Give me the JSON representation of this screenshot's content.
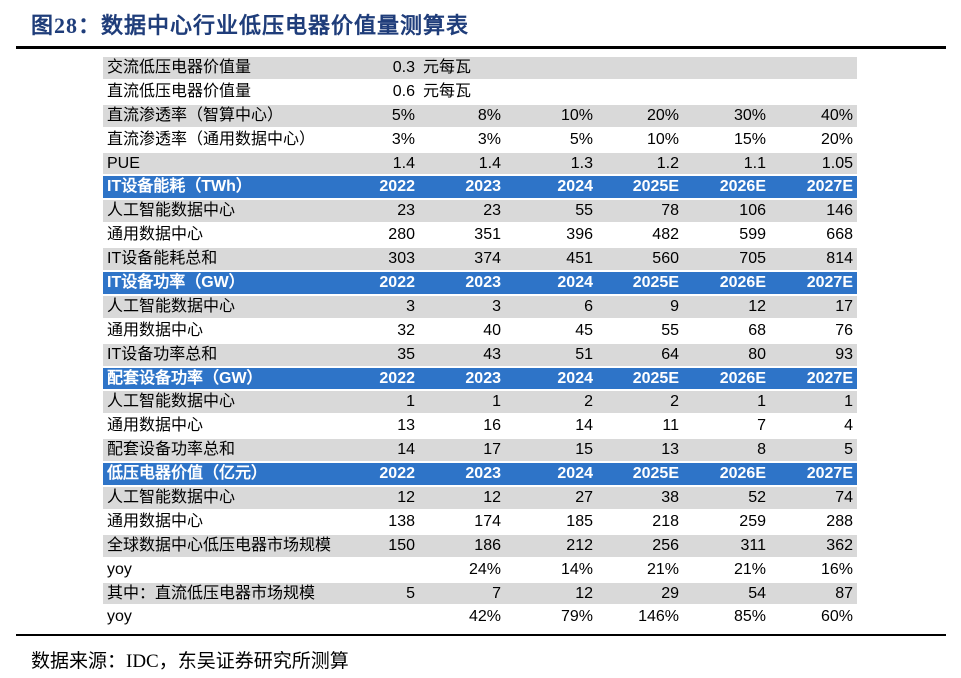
{
  "title": "图28：数据中心行业低压电器价值量测算表",
  "source": "数据来源：IDC，东吴证券研究所测算",
  "colors": {
    "title": "#1f3d7a",
    "header_bg": "#2e74c8",
    "row_gray": "#d9d9d9",
    "row_white": "#ffffff"
  },
  "rows": [
    {
      "style": "gray",
      "cells": [
        "交流低压电器价值量",
        "0.3",
        "元每瓦",
        "",
        "",
        "",
        ""
      ]
    },
    {
      "style": "white",
      "cells": [
        "直流低压电器价值量",
        "0.6",
        "元每瓦",
        "",
        "",
        "",
        ""
      ]
    },
    {
      "style": "gray",
      "cells": [
        "直流渗透率（智算中心）",
        "5%",
        "8%",
        "10%",
        "20%",
        "30%",
        "40%"
      ]
    },
    {
      "style": "white",
      "cells": [
        "直流渗透率（通用数据中心）",
        "3%",
        "3%",
        "5%",
        "10%",
        "15%",
        "20%"
      ]
    },
    {
      "style": "gray",
      "cells": [
        "PUE",
        "1.4",
        "1.4",
        "1.3",
        "1.2",
        "1.1",
        "1.05"
      ]
    },
    {
      "style": "head",
      "cells": [
        "IT设备能耗（TWh）",
        "2022",
        "2023",
        "2024",
        "2025E",
        "2026E",
        "2027E"
      ]
    },
    {
      "style": "gray",
      "cells": [
        "人工智能数据中心",
        "23",
        "23",
        "55",
        "78",
        "106",
        "146"
      ]
    },
    {
      "style": "white",
      "cells": [
        "通用数据中心",
        "280",
        "351",
        "396",
        "482",
        "599",
        "668"
      ]
    },
    {
      "style": "gray",
      "cells": [
        "IT设备能耗总和",
        "303",
        "374",
        "451",
        "560",
        "705",
        "814"
      ]
    },
    {
      "style": "head",
      "cells": [
        "IT设备功率（GW）",
        "2022",
        "2023",
        "2024",
        "2025E",
        "2026E",
        "2027E"
      ]
    },
    {
      "style": "gray",
      "cells": [
        "人工智能数据中心",
        "3",
        "3",
        "6",
        "9",
        "12",
        "17"
      ]
    },
    {
      "style": "white",
      "cells": [
        "通用数据中心",
        "32",
        "40",
        "45",
        "55",
        "68",
        "76"
      ]
    },
    {
      "style": "gray",
      "cells": [
        "IT设备功率总和",
        "35",
        "43",
        "51",
        "64",
        "80",
        "93"
      ]
    },
    {
      "style": "head",
      "cells": [
        "配套设备功率（GW）",
        "2022",
        "2023",
        "2024",
        "2025E",
        "2026E",
        "2027E"
      ]
    },
    {
      "style": "gray",
      "cells": [
        "人工智能数据中心",
        "1",
        "1",
        "2",
        "2",
        "1",
        "1"
      ]
    },
    {
      "style": "white",
      "cells": [
        "通用数据中心",
        "13",
        "16",
        "14",
        "11",
        "7",
        "4"
      ]
    },
    {
      "style": "gray",
      "cells": [
        "配套设备功率总和",
        "14",
        "17",
        "15",
        "13",
        "8",
        "5"
      ]
    },
    {
      "style": "head",
      "cells": [
        "低压电器价值（亿元）",
        "2022",
        "2023",
        "2024",
        "2025E",
        "2026E",
        "2027E"
      ]
    },
    {
      "style": "gray",
      "cells": [
        "人工智能数据中心",
        "12",
        "12",
        "27",
        "38",
        "52",
        "74"
      ]
    },
    {
      "style": "white",
      "cells": [
        "通用数据中心",
        "138",
        "174",
        "185",
        "218",
        "259",
        "288"
      ]
    },
    {
      "style": "gray",
      "cells": [
        "全球数据中心低压电器市场规模",
        "150",
        "186",
        "212",
        "256",
        "311",
        "362"
      ]
    },
    {
      "style": "white",
      "cells": [
        "yoy",
        "",
        "24%",
        "14%",
        "21%",
        "21%",
        "16%"
      ]
    },
    {
      "style": "gray",
      "cells": [
        "其中：直流低压电器市场规模",
        "5",
        "7",
        "12",
        "29",
        "54",
        "87"
      ]
    },
    {
      "style": "white",
      "cells": [
        "yoy",
        "",
        "42%",
        "79%",
        "146%",
        "85%",
        "60%"
      ]
    }
  ]
}
